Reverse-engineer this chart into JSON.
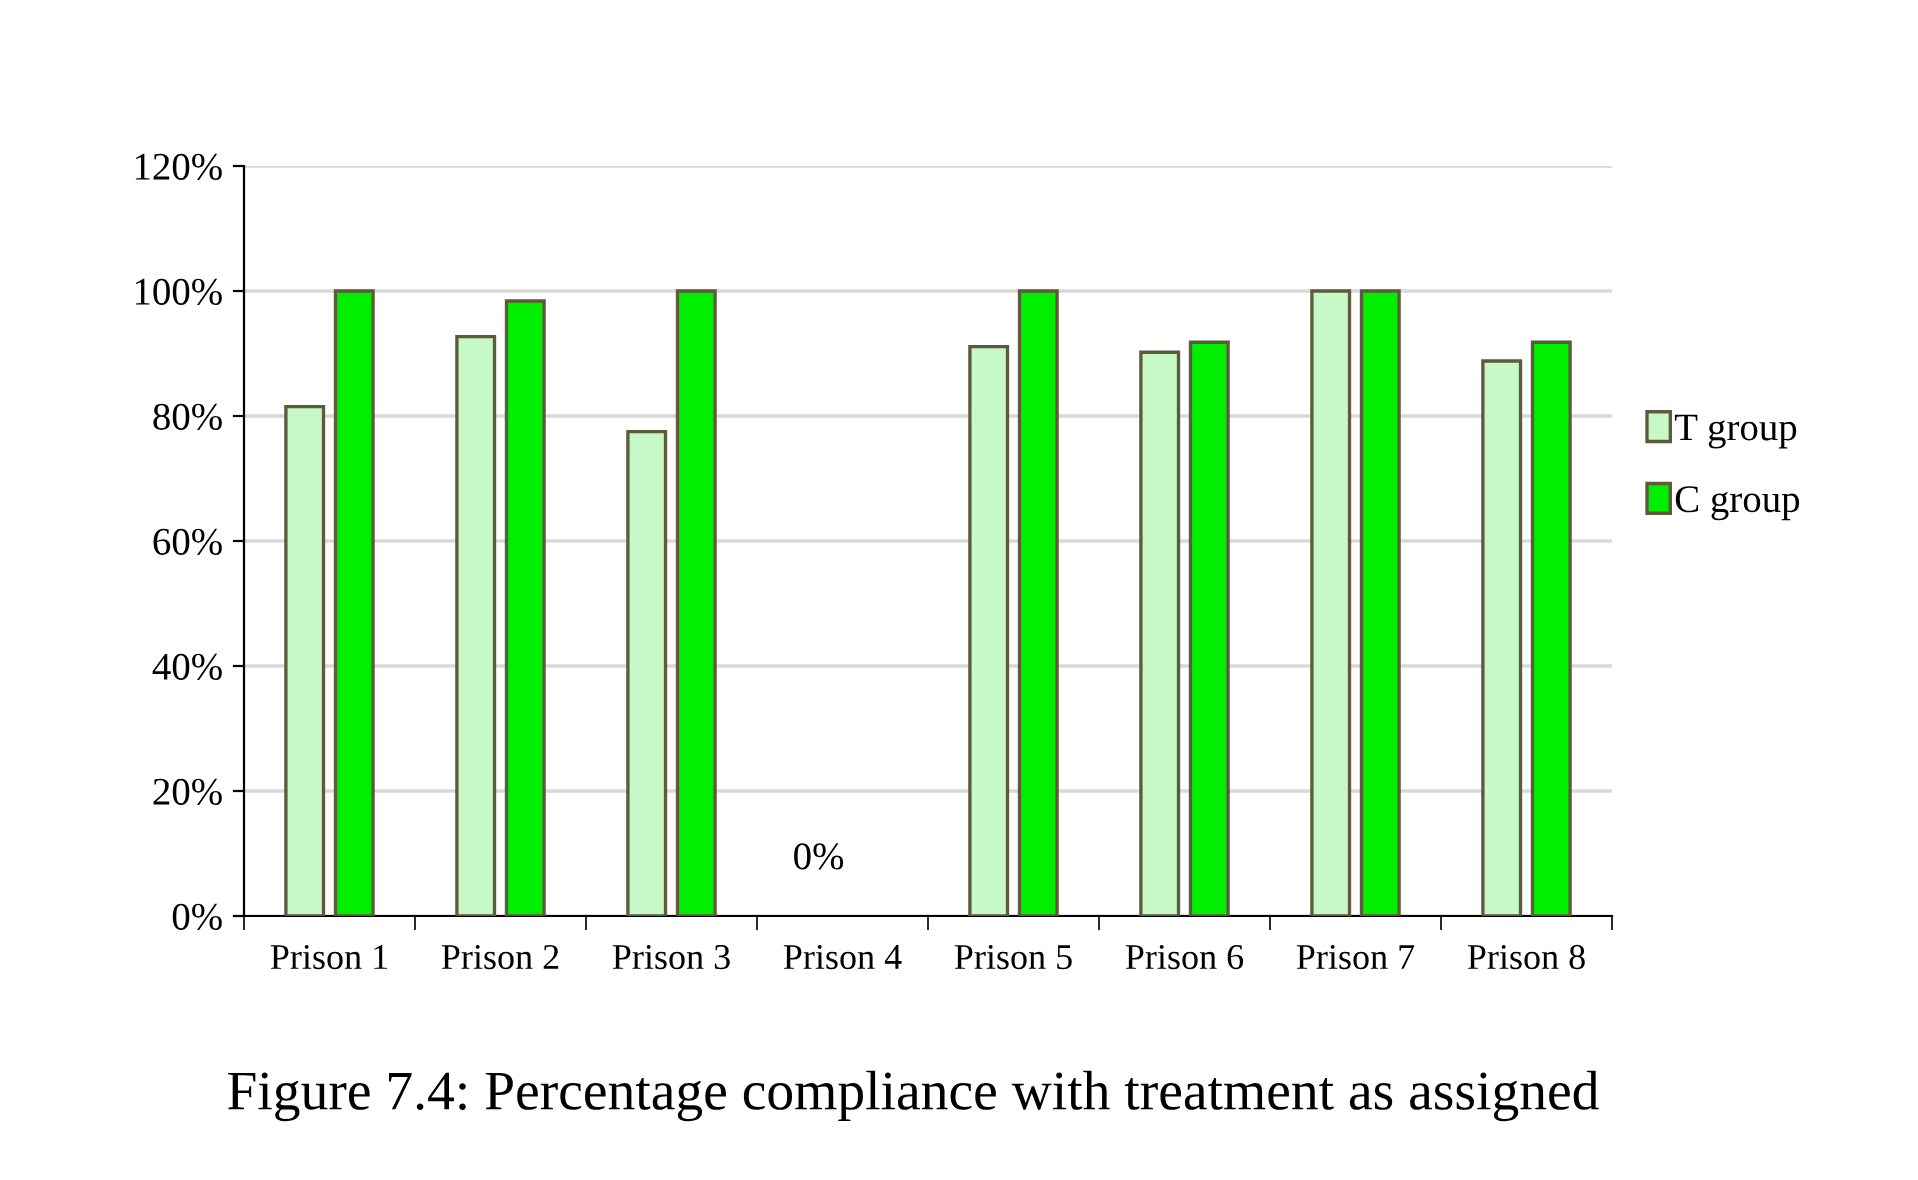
{
  "chart_data": {
    "type": "bar",
    "title": "Figure 7.4: Percentage compliance with treatment as assigned",
    "categories": [
      "Prison 1",
      "Prison 2",
      "Prison 3",
      "Prison 4",
      "Prison 5",
      "Prison 6",
      "Prison 7",
      "Prison 8"
    ],
    "series": [
      {
        "name": "T group",
        "color": "#c6f9c6",
        "values": [
          81.5,
          92.7,
          77.5,
          null,
          91.1,
          90.2,
          100,
          88.8
        ]
      },
      {
        "name": "C group",
        "color": "#00ee00",
        "values": [
          100,
          98.4,
          100,
          null,
          100,
          91.8,
          100,
          91.8
        ]
      }
    ],
    "annotations": [
      "0%"
    ],
    "ylim": [
      0,
      120
    ],
    "yticks": [
      {
        "value": 0,
        "label": "0%"
      },
      {
        "value": 20,
        "label": "20%"
      },
      {
        "value": 40,
        "label": "40%"
      },
      {
        "value": 60,
        "label": "60%"
      },
      {
        "value": 80,
        "label": "80%"
      },
      {
        "value": 100,
        "label": "100%"
      },
      {
        "value": 120,
        "label": "120%"
      }
    ],
    "grid": "y",
    "legend": "right"
  }
}
